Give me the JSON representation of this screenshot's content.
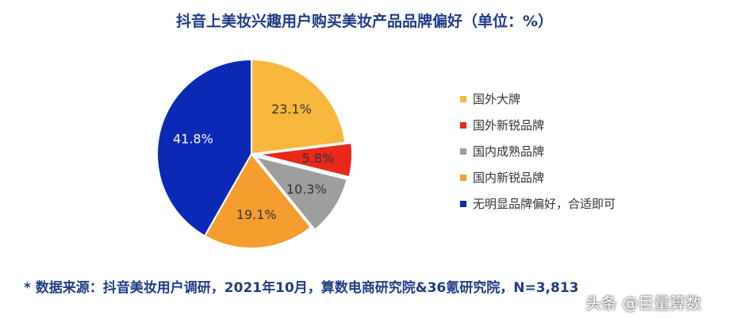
{
  "chart_data": {
    "type": "pie",
    "title": "抖音上美妆兴趣用户购买美妆产品品牌偏好（单位：%）",
    "slices": [
      {
        "label": "国外大牌",
        "value": 23.1,
        "display": "23.1%",
        "color": "#f6b73c",
        "text_color": "#333333"
      },
      {
        "label": "国外新锐品牌",
        "value": 5.8,
        "display": "5.8%",
        "color": "#e8291c",
        "text_color": "#333333"
      },
      {
        "label": "国内成熟品牌",
        "value": 10.3,
        "display": "10.3%",
        "color": "#9e9e9e",
        "text_color": "#333333"
      },
      {
        "label": "国内新锐品牌",
        "value": 19.1,
        "display": "19.1%",
        "color": "#f59d2e",
        "text_color": "#333333"
      },
      {
        "label": "无明显品牌偏好，合适即可",
        "value": 41.8,
        "display": "41.8%",
        "color": "#0a2ab5",
        "text_color": "#ffffff"
      }
    ],
    "legend_position": "right"
  },
  "footnote": "* 数据来源：抖音美妆用户调研，2021年10月，算数电商研究院&36氪研究院，N=3,813",
  "watermark": "头条 @巨量算数"
}
